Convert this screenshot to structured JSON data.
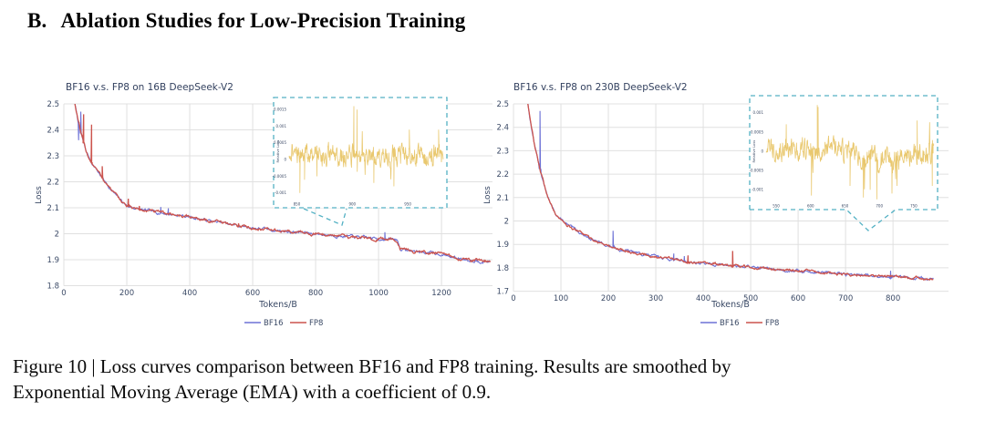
{
  "heading": {
    "label": "B.",
    "title": "Ablation Studies for Low-Precision Training"
  },
  "caption": {
    "line1": "Figure 10 | Loss curves comparison between BF16 and FP8 training. Results are smoothed by",
    "line2": "Exponential Moving Average (EMA) with a coefficient of 0.9."
  },
  "colors": {
    "bf16": "#6d72d6",
    "fp8": "#cc544d",
    "inset_line": "#e9c86f",
    "inset_border": "#53b1c4",
    "grid": "#e0e0e0",
    "axis_text": "#3b4a66"
  },
  "chart_data": [
    {
      "type": "line",
      "title": "BF16 v.s. FP8 on 16B DeepSeek-V2",
      "xlabel": "Tokens/B",
      "ylabel": "Loss",
      "xlim": [
        0,
        1362
      ],
      "ylim": [
        1.8,
        2.5
      ],
      "xticks": [
        0,
        200,
        400,
        600,
        800,
        1000,
        1200
      ],
      "yticks": [
        1.8,
        1.9,
        2,
        2.1,
        2.2,
        2.3,
        2.4,
        2.5
      ],
      "grid": true,
      "legend_position": "bottom-center",
      "legend": [
        "BF16",
        "FP8"
      ],
      "series": [
        {
          "name": "BF16",
          "color": "#6d72d6",
          "anchors_ref": 1,
          "spikes": [
            [
              47,
              2.36
            ],
            [
              54,
              2.47
            ],
            [
              308,
              2.103
            ],
            [
              332,
              2.098
            ],
            [
              745,
              2.012
            ],
            [
              1020,
              2.006
            ]
          ]
        },
        {
          "name": "FP8",
          "color": "#cc544d",
          "anchors": [
            [
              28,
              2.56
            ],
            [
              35,
              2.5
            ],
            [
              45,
              2.44
            ],
            [
              55,
              2.38
            ],
            [
              70,
              2.32
            ],
            [
              85,
              2.28
            ],
            [
              100,
              2.255
            ],
            [
              125,
              2.21
            ],
            [
              150,
              2.17
            ],
            [
              175,
              2.135
            ],
            [
              200,
              2.108
            ],
            [
              250,
              2.09
            ],
            [
              300,
              2.082
            ],
            [
              350,
              2.074
            ],
            [
              400,
              2.065
            ],
            [
              450,
              2.053
            ],
            [
              500,
              2.042
            ],
            [
              550,
              2.032
            ],
            [
              600,
              2.023
            ],
            [
              650,
              2.016
            ],
            [
              700,
              2.01
            ],
            [
              750,
              2.005
            ],
            [
              800,
              2.0
            ],
            [
              850,
              1.995
            ],
            [
              900,
              1.99
            ],
            [
              950,
              1.985
            ],
            [
              1000,
              1.981
            ],
            [
              1060,
              1.977
            ],
            [
              1068,
              1.942
            ],
            [
              1100,
              1.934
            ],
            [
              1150,
              1.928
            ],
            [
              1200,
              1.922
            ],
            [
              1215,
              1.916
            ],
            [
              1235,
              1.909
            ],
            [
              1270,
              1.903
            ],
            [
              1310,
              1.897
            ],
            [
              1355,
              1.892
            ]
          ],
          "spikes": [
            [
              63,
              2.46
            ],
            [
              88,
              2.42
            ],
            [
              122,
              2.26
            ],
            [
              205,
              2.135
            ],
            [
              240,
              2.107
            ],
            [
              447,
              2.06
            ],
            [
              555,
              2.04
            ]
          ]
        }
      ],
      "inset": {
        "ylabel": "Relative Loss",
        "yticks": [
          0.0015,
          0.001,
          0.0005,
          0,
          -0.0005,
          -0.001
        ],
        "ylim": [
          -0.00125,
          0.00175
        ],
        "xticks": [
          850,
          900,
          950
        ],
        "spikes": [
          [
            0.07,
            -0.001
          ],
          [
            0.1,
            -0.0006
          ],
          [
            0.18,
            -0.0005
          ],
          [
            0.42,
            0.0016
          ],
          [
            0.44,
            0.0015
          ],
          [
            0.55,
            -0.0007
          ],
          [
            0.68,
            -0.0008
          ],
          [
            0.78,
            0.0009
          ],
          [
            0.97,
            0.0009
          ]
        ],
        "drift": [
          [
            0,
            0.00025
          ],
          [
            0.3,
            0.0001
          ],
          [
            1,
            8e-05
          ]
        ]
      }
    },
    {
      "type": "line",
      "title": "BF16 v.s. FP8 on 230B DeepSeek-V2",
      "xlabel": "Tokens/B",
      "ylabel": "Loss",
      "xlim": [
        0,
        917
      ],
      "ylim": [
        1.7,
        2.5
      ],
      "xticks": [
        0,
        100,
        200,
        300,
        400,
        500,
        600,
        700,
        800
      ],
      "yticks": [
        1.7,
        1.8,
        1.9,
        2,
        2.1,
        2.2,
        2.3,
        2.4,
        2.5
      ],
      "grid": true,
      "legend_position": "bottom-center",
      "legend": [
        "BF16",
        "FP8"
      ],
      "series": [
        {
          "name": "BF16",
          "color": "#6d72d6",
          "anchors_ref": 1,
          "spikes": [
            [
              56,
              2.47
            ],
            [
              210,
              1.958
            ],
            [
              338,
              1.861
            ],
            [
              360,
              1.85
            ],
            [
              795,
              1.787
            ]
          ]
        },
        {
          "name": "FP8",
          "color": "#cc544d",
          "anchors": [
            [
              28,
              2.54
            ],
            [
              36,
              2.42
            ],
            [
              45,
              2.32
            ],
            [
              55,
              2.23
            ],
            [
              65,
              2.15
            ],
            [
              78,
              2.07
            ],
            [
              90,
              2.03
            ],
            [
              100,
              2.005
            ],
            [
              107,
              1.998
            ],
            [
              112,
              1.985
            ],
            [
              125,
              1.968
            ],
            [
              140,
              1.951
            ],
            [
              160,
              1.928
            ],
            [
              180,
              1.909
            ],
            [
              200,
              1.893
            ],
            [
              225,
              1.879
            ],
            [
              250,
              1.868
            ],
            [
              275,
              1.857
            ],
            [
              300,
              1.848
            ],
            [
              350,
              1.832
            ],
            [
              400,
              1.818
            ],
            [
              450,
              1.811
            ],
            [
              500,
              1.803
            ],
            [
              550,
              1.795
            ],
            [
              600,
              1.787
            ],
            [
              650,
              1.78
            ],
            [
              700,
              1.773
            ],
            [
              750,
              1.768
            ],
            [
              800,
              1.763
            ],
            [
              850,
              1.757
            ],
            [
              885,
              1.753
            ]
          ],
          "spikes": [
            [
              368,
              1.853
            ],
            [
              462,
              1.872
            ]
          ]
        }
      ],
      "inset": {
        "ylabel": "Relative Loss",
        "yticks": [
          0.001,
          0.0005,
          0,
          -0.0005,
          -0.001
        ],
        "ylim": [
          -0.00135,
          0.00135
        ],
        "xticks": [
          550,
          600,
          650,
          700,
          750
        ],
        "spikes": [
          [
            0.12,
            0.0007
          ],
          [
            0.27,
            -0.00115
          ],
          [
            0.305,
            0.0012
          ],
          [
            0.31,
            0.00115
          ],
          [
            0.5,
            -0.0009
          ],
          [
            0.58,
            -0.0012
          ],
          [
            0.62,
            -0.001
          ],
          [
            0.66,
            -0.00125
          ],
          [
            0.75,
            -0.0011
          ],
          [
            0.78,
            -0.0009
          ],
          [
            0.9,
            0.0008
          ],
          [
            0.99,
            -0.0009
          ]
        ],
        "drift": [
          [
            0,
            0.0001
          ],
          [
            0.45,
            5e-05
          ],
          [
            0.6,
            -0.0002
          ],
          [
            0.75,
            -0.00025
          ],
          [
            0.85,
            -0.0001
          ],
          [
            1,
            -5e-05
          ]
        ]
      }
    }
  ]
}
